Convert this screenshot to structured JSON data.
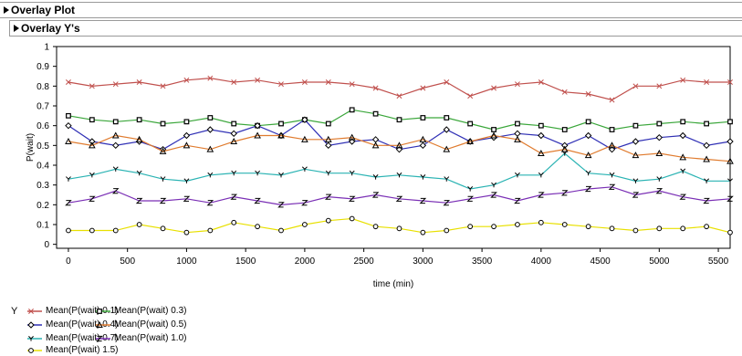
{
  "header": {
    "title": "Overlay Plot",
    "subtitle": "Overlay Y's"
  },
  "chart_data": {
    "type": "line",
    "title": "",
    "xlabel": "time (min)",
    "ylabel": "P(wait)",
    "xlim": [
      -100,
      5600
    ],
    "ylim": [
      -0.02,
      1.0
    ],
    "xticks": [
      "0",
      "500",
      "1000",
      "1500",
      "2000",
      "2500",
      "3000",
      "3500",
      "4000",
      "4500",
      "5000",
      "5500"
    ],
    "yticks": [
      "0",
      "0.1",
      "0.2",
      "0.3",
      "0.4",
      "0.5",
      "0.6",
      "0.7",
      "0.8",
      "0.9",
      "1"
    ],
    "grid": false,
    "legend_title": "Y",
    "legend_position": "bottom-left",
    "x": [
      0,
      200,
      400,
      600,
      800,
      1000,
      1200,
      1400,
      1600,
      1800,
      2000,
      2200,
      2400,
      2600,
      2800,
      3000,
      3200,
      3400,
      3600,
      3800,
      4000,
      4200,
      4400,
      4600,
      4800,
      5000,
      5200,
      5400,
      5600
    ],
    "series": [
      {
        "name": "Mean(P(wait) 0.1)",
        "marker": "x",
        "color": "#c0504d",
        "values": [
          0.82,
          0.8,
          0.81,
          0.82,
          0.8,
          0.83,
          0.84,
          0.82,
          0.83,
          0.81,
          0.82,
          0.82,
          0.81,
          0.79,
          0.75,
          0.79,
          0.82,
          0.75,
          0.79,
          0.81,
          0.82,
          0.77,
          0.76,
          0.73,
          0.8,
          0.8,
          0.83,
          0.82,
          0.82
        ]
      },
      {
        "name": "Mean(P(wait) 0.3)",
        "marker": "square",
        "color": "#3aa63a",
        "values": [
          0.65,
          0.63,
          0.62,
          0.63,
          0.61,
          0.62,
          0.64,
          0.61,
          0.6,
          0.61,
          0.63,
          0.61,
          0.68,
          0.66,
          0.63,
          0.64,
          0.64,
          0.61,
          0.58,
          0.61,
          0.6,
          0.58,
          0.62,
          0.58,
          0.6,
          0.61,
          0.62,
          0.61,
          0.62
        ]
      },
      {
        "name": "Mean(P(wait) 0.4)",
        "marker": "diamond",
        "color": "#2f2fb5",
        "values": [
          0.6,
          0.52,
          0.5,
          0.52,
          0.48,
          0.55,
          0.58,
          0.56,
          0.6,
          0.55,
          0.63,
          0.5,
          0.52,
          0.53,
          0.48,
          0.5,
          0.58,
          0.52,
          0.54,
          0.56,
          0.55,
          0.5,
          0.55,
          0.48,
          0.52,
          0.54,
          0.55,
          0.5,
          0.52
        ]
      },
      {
        "name": "Mean(P(wait) 0.5)",
        "marker": "triangle",
        "color": "#e07b2e",
        "values": [
          0.52,
          0.5,
          0.55,
          0.53,
          0.47,
          0.5,
          0.48,
          0.52,
          0.55,
          0.55,
          0.53,
          0.53,
          0.54,
          0.5,
          0.5,
          0.53,
          0.48,
          0.52,
          0.55,
          0.53,
          0.46,
          0.48,
          0.45,
          0.5,
          0.45,
          0.46,
          0.44,
          0.43,
          0.42
        ]
      },
      {
        "name": "Mean(P(wait) 0.7)",
        "marker": "y",
        "color": "#2ab3b3",
        "values": [
          0.33,
          0.35,
          0.38,
          0.36,
          0.33,
          0.32,
          0.35,
          0.36,
          0.36,
          0.35,
          0.38,
          0.36,
          0.36,
          0.34,
          0.35,
          0.34,
          0.33,
          0.28,
          0.3,
          0.35,
          0.35,
          0.46,
          0.36,
          0.35,
          0.32,
          0.33,
          0.37,
          0.32,
          0.32
        ]
      },
      {
        "name": "Mean(P(wait) 1.0)",
        "marker": "z",
        "color": "#7a2fb5",
        "values": [
          0.21,
          0.23,
          0.27,
          0.22,
          0.22,
          0.23,
          0.21,
          0.24,
          0.22,
          0.2,
          0.21,
          0.24,
          0.23,
          0.25,
          0.23,
          0.22,
          0.21,
          0.23,
          0.25,
          0.22,
          0.25,
          0.26,
          0.28,
          0.29,
          0.25,
          0.27,
          0.24,
          0.22,
          0.23
        ]
      },
      {
        "name": "Mean(P(wait) 1.5)",
        "marker": "circle",
        "color": "#e8e000",
        "values": [
          0.07,
          0.07,
          0.07,
          0.1,
          0.08,
          0.06,
          0.07,
          0.11,
          0.09,
          0.07,
          0.1,
          0.12,
          0.13,
          0.09,
          0.08,
          0.06,
          0.07,
          0.09,
          0.09,
          0.1,
          0.11,
          0.1,
          0.09,
          0.08,
          0.07,
          0.08,
          0.08,
          0.09,
          0.06
        ]
      }
    ]
  }
}
